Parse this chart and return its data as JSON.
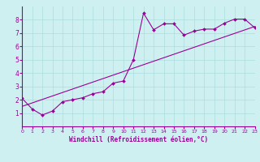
{
  "xlabel": "Windchill (Refroidissement éolien,°C)",
  "bg_color": "#cff0f0",
  "line_color": "#990099",
  "grid_color": "#aadddd",
  "xlim": [
    0,
    23
  ],
  "ylim": [
    0,
    9
  ],
  "xticks": [
    0,
    1,
    2,
    3,
    4,
    5,
    6,
    7,
    8,
    9,
    10,
    11,
    12,
    13,
    14,
    15,
    16,
    17,
    18,
    19,
    20,
    21,
    22,
    23
  ],
  "yticks": [
    1,
    2,
    3,
    4,
    5,
    6,
    7,
    8
  ],
  "scatter_x": [
    0,
    1,
    2,
    3,
    4,
    5,
    6,
    7,
    8,
    9,
    10,
    11,
    12,
    13,
    14,
    15,
    16,
    17,
    18,
    19,
    20,
    21,
    22,
    23
  ],
  "scatter_y": [
    2.1,
    1.3,
    0.85,
    1.15,
    1.85,
    2.0,
    2.15,
    2.45,
    2.6,
    3.25,
    3.4,
    5.0,
    8.5,
    7.25,
    7.7,
    7.7,
    6.85,
    7.15,
    7.3,
    7.3,
    7.75,
    8.05,
    8.05,
    7.4
  ],
  "line2_x": [
    0,
    23
  ],
  "line2_y": [
    1.5,
    7.5
  ]
}
